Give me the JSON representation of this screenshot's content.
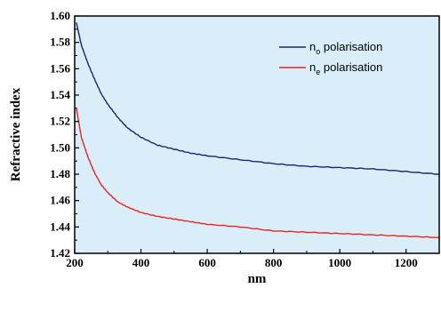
{
  "chart_data": {
    "type": "line",
    "title": "",
    "xlabel": "nm",
    "ylabel": "Refractive index",
    "xlim": [
      200,
      1300
    ],
    "ylim": [
      1.42,
      1.6
    ],
    "xticks": [
      200,
      400,
      600,
      800,
      1000,
      1200
    ],
    "yticks": [
      1.42,
      1.44,
      1.46,
      1.48,
      1.5,
      1.52,
      1.54,
      1.56,
      1.58,
      1.6
    ],
    "xtick_labels": [
      "200",
      "400",
      "600",
      "800",
      "1000",
      "1200"
    ],
    "ytick_labels": [
      "1.42",
      "1.44",
      "1.46",
      "1.48",
      "1.50",
      "1.52",
      "1.54",
      "1.56",
      "1.58",
      "1.60"
    ],
    "grid": false,
    "legend_position": "top-right",
    "plot_background": "#d9eef8",
    "series": [
      {
        "name": "n",
        "subscript": "o",
        "name_suffix": " polarisation",
        "color": "#1a237e",
        "x": [
          205,
          220,
          240,
          260,
          280,
          300,
          330,
          360,
          400,
          450,
          500,
          550,
          600,
          700,
          800,
          900,
          1000,
          1100,
          1200,
          1300
        ],
        "y": [
          1.595,
          1.578,
          1.564,
          1.552,
          1.541,
          1.533,
          1.523,
          1.515,
          1.508,
          1.502,
          1.499,
          1.496,
          1.494,
          1.491,
          1.488,
          1.486,
          1.485,
          1.484,
          1.482,
          1.48
        ]
      },
      {
        "name": "n",
        "subscript": "e",
        "name_suffix": " polarisation",
        "color": "#ee2222",
        "x": [
          205,
          220,
          240,
          260,
          280,
          300,
          330,
          360,
          400,
          450,
          500,
          550,
          600,
          700,
          800,
          900,
          1000,
          1100,
          1200,
          1300
        ],
        "y": [
          1.53,
          1.508,
          1.493,
          1.481,
          1.472,
          1.466,
          1.459,
          1.455,
          1.451,
          1.448,
          1.446,
          1.444,
          1.442,
          1.44,
          1.437,
          1.436,
          1.435,
          1.434,
          1.433,
          1.432
        ]
      }
    ]
  }
}
